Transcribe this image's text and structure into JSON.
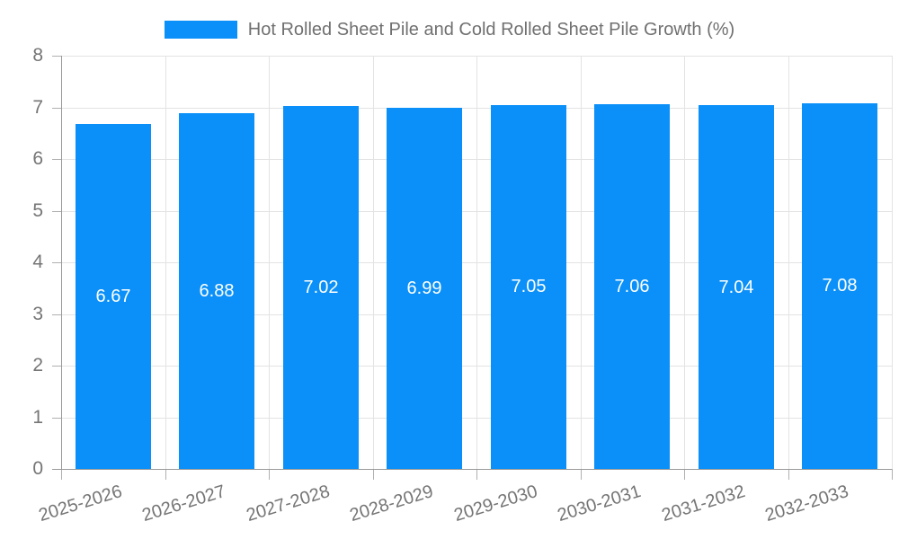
{
  "legend": {
    "label": "Hot Rolled Sheet Pile and Cold Rolled Sheet Pile Growth (%)"
  },
  "chart_data": {
    "type": "bar",
    "title": "Hot Rolled Sheet Pile and Cold Rolled Sheet Pile Growth (%)",
    "categories": [
      "2025-2026",
      "2026-2027",
      "2027-2028",
      "2028-2029",
      "2029-2030",
      "2030-2031",
      "2031-2032",
      "2032-2033"
    ],
    "values": [
      6.67,
      6.88,
      7.02,
      6.99,
      7.05,
      7.06,
      7.04,
      7.08
    ],
    "value_labels": [
      "6.67",
      "6.88",
      "7.02",
      "6.99",
      "7.05",
      "7.06",
      "7.04",
      "7.08"
    ],
    "xlabel": "",
    "ylabel": "",
    "ylim": [
      0,
      8
    ],
    "yticks": [
      0,
      1,
      2,
      3,
      4,
      5,
      6,
      7,
      8
    ],
    "grid": true,
    "legend_position": "top",
    "colors": {
      "bar": "#0a90f8",
      "value_label": "#ffffff",
      "axis_label": "#757575",
      "legend_text": "#707070",
      "grid_line": "#e3e3e3",
      "axis_line": "#999999"
    }
  }
}
